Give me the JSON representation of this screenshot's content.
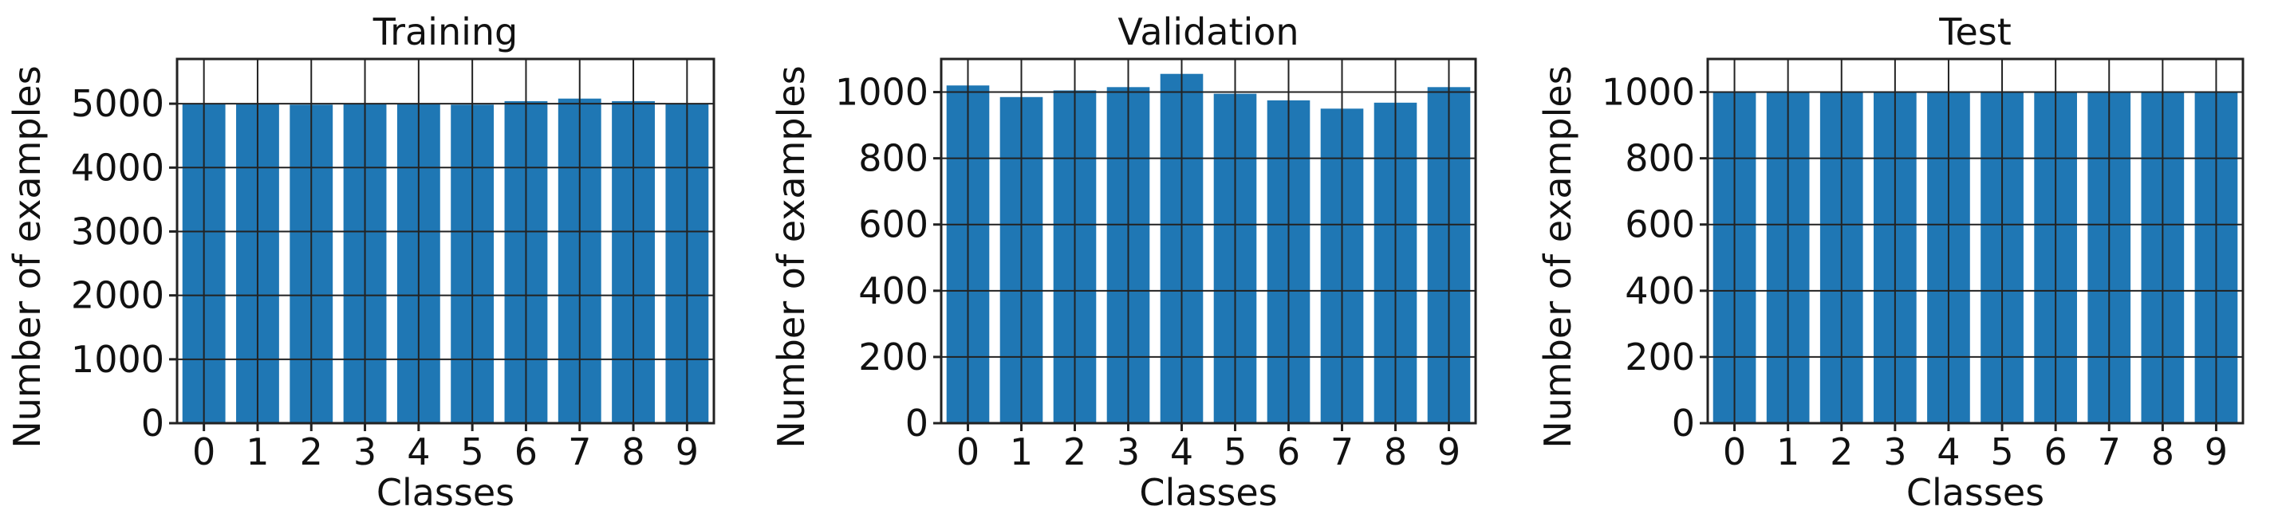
{
  "colors": {
    "bar": "#1f77b4",
    "grid": "#222222",
    "background": "#ffffff"
  },
  "chart_data": [
    {
      "type": "bar",
      "title": "Training",
      "xlabel": "Classes",
      "ylabel": "Number of examples",
      "categories": [
        "0",
        "1",
        "2",
        "3",
        "4",
        "5",
        "6",
        "7",
        "8",
        "9"
      ],
      "values": [
        5000,
        4990,
        4985,
        4995,
        4990,
        4985,
        5040,
        5080,
        5040,
        4995
      ],
      "ylim": [
        0,
        5700
      ],
      "yticks": [
        0,
        1000,
        2000,
        3000,
        4000,
        5000
      ],
      "grid": true,
      "legend": "none"
    },
    {
      "type": "bar",
      "title": "Validation",
      "xlabel": "Classes",
      "ylabel": "Number of examples",
      "categories": [
        "0",
        "1",
        "2",
        "3",
        "4",
        "5",
        "6",
        "7",
        "8",
        "9"
      ],
      "values": [
        1020,
        985,
        1005,
        1015,
        1055,
        995,
        975,
        950,
        968,
        1015
      ],
      "ylim": [
        0,
        1100
      ],
      "yticks": [
        0,
        200,
        400,
        600,
        800,
        1000
      ],
      "grid": true,
      "legend": "none"
    },
    {
      "type": "bar",
      "title": "Test",
      "xlabel": "Classes",
      "ylabel": "Number of examples",
      "categories": [
        "0",
        "1",
        "2",
        "3",
        "4",
        "5",
        "6",
        "7",
        "8",
        "9"
      ],
      "values": [
        1000,
        1000,
        1000,
        1000,
        1000,
        1000,
        1000,
        1000,
        1000,
        1000
      ],
      "ylim": [
        0,
        1100
      ],
      "yticks": [
        0,
        200,
        400,
        600,
        800,
        1000
      ],
      "grid": true,
      "legend": "none"
    }
  ]
}
